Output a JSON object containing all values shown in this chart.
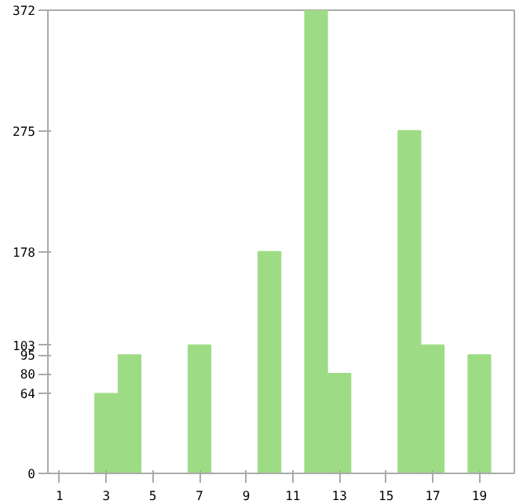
{
  "chart_data": {
    "type": "bar",
    "x": [
      1,
      2,
      3,
      4,
      5,
      6,
      7,
      8,
      9,
      10,
      11,
      12,
      13,
      14,
      15,
      16,
      17,
      18,
      19,
      20
    ],
    "values": [
      0,
      0,
      64,
      95,
      0,
      0,
      103,
      0,
      0,
      178,
      0,
      372,
      80,
      0,
      0,
      275,
      103,
      0,
      95,
      0
    ],
    "color": "#9ddc85",
    "xlim": [
      0.5,
      20.5
    ],
    "xticks": [
      1,
      3,
      5,
      7,
      9,
      11,
      13,
      15,
      17,
      19
    ],
    "ylim": [
      0,
      372
    ],
    "yticks": [
      0,
      64,
      80,
      95,
      103,
      178,
      275,
      372
    ],
    "grid": false
  }
}
